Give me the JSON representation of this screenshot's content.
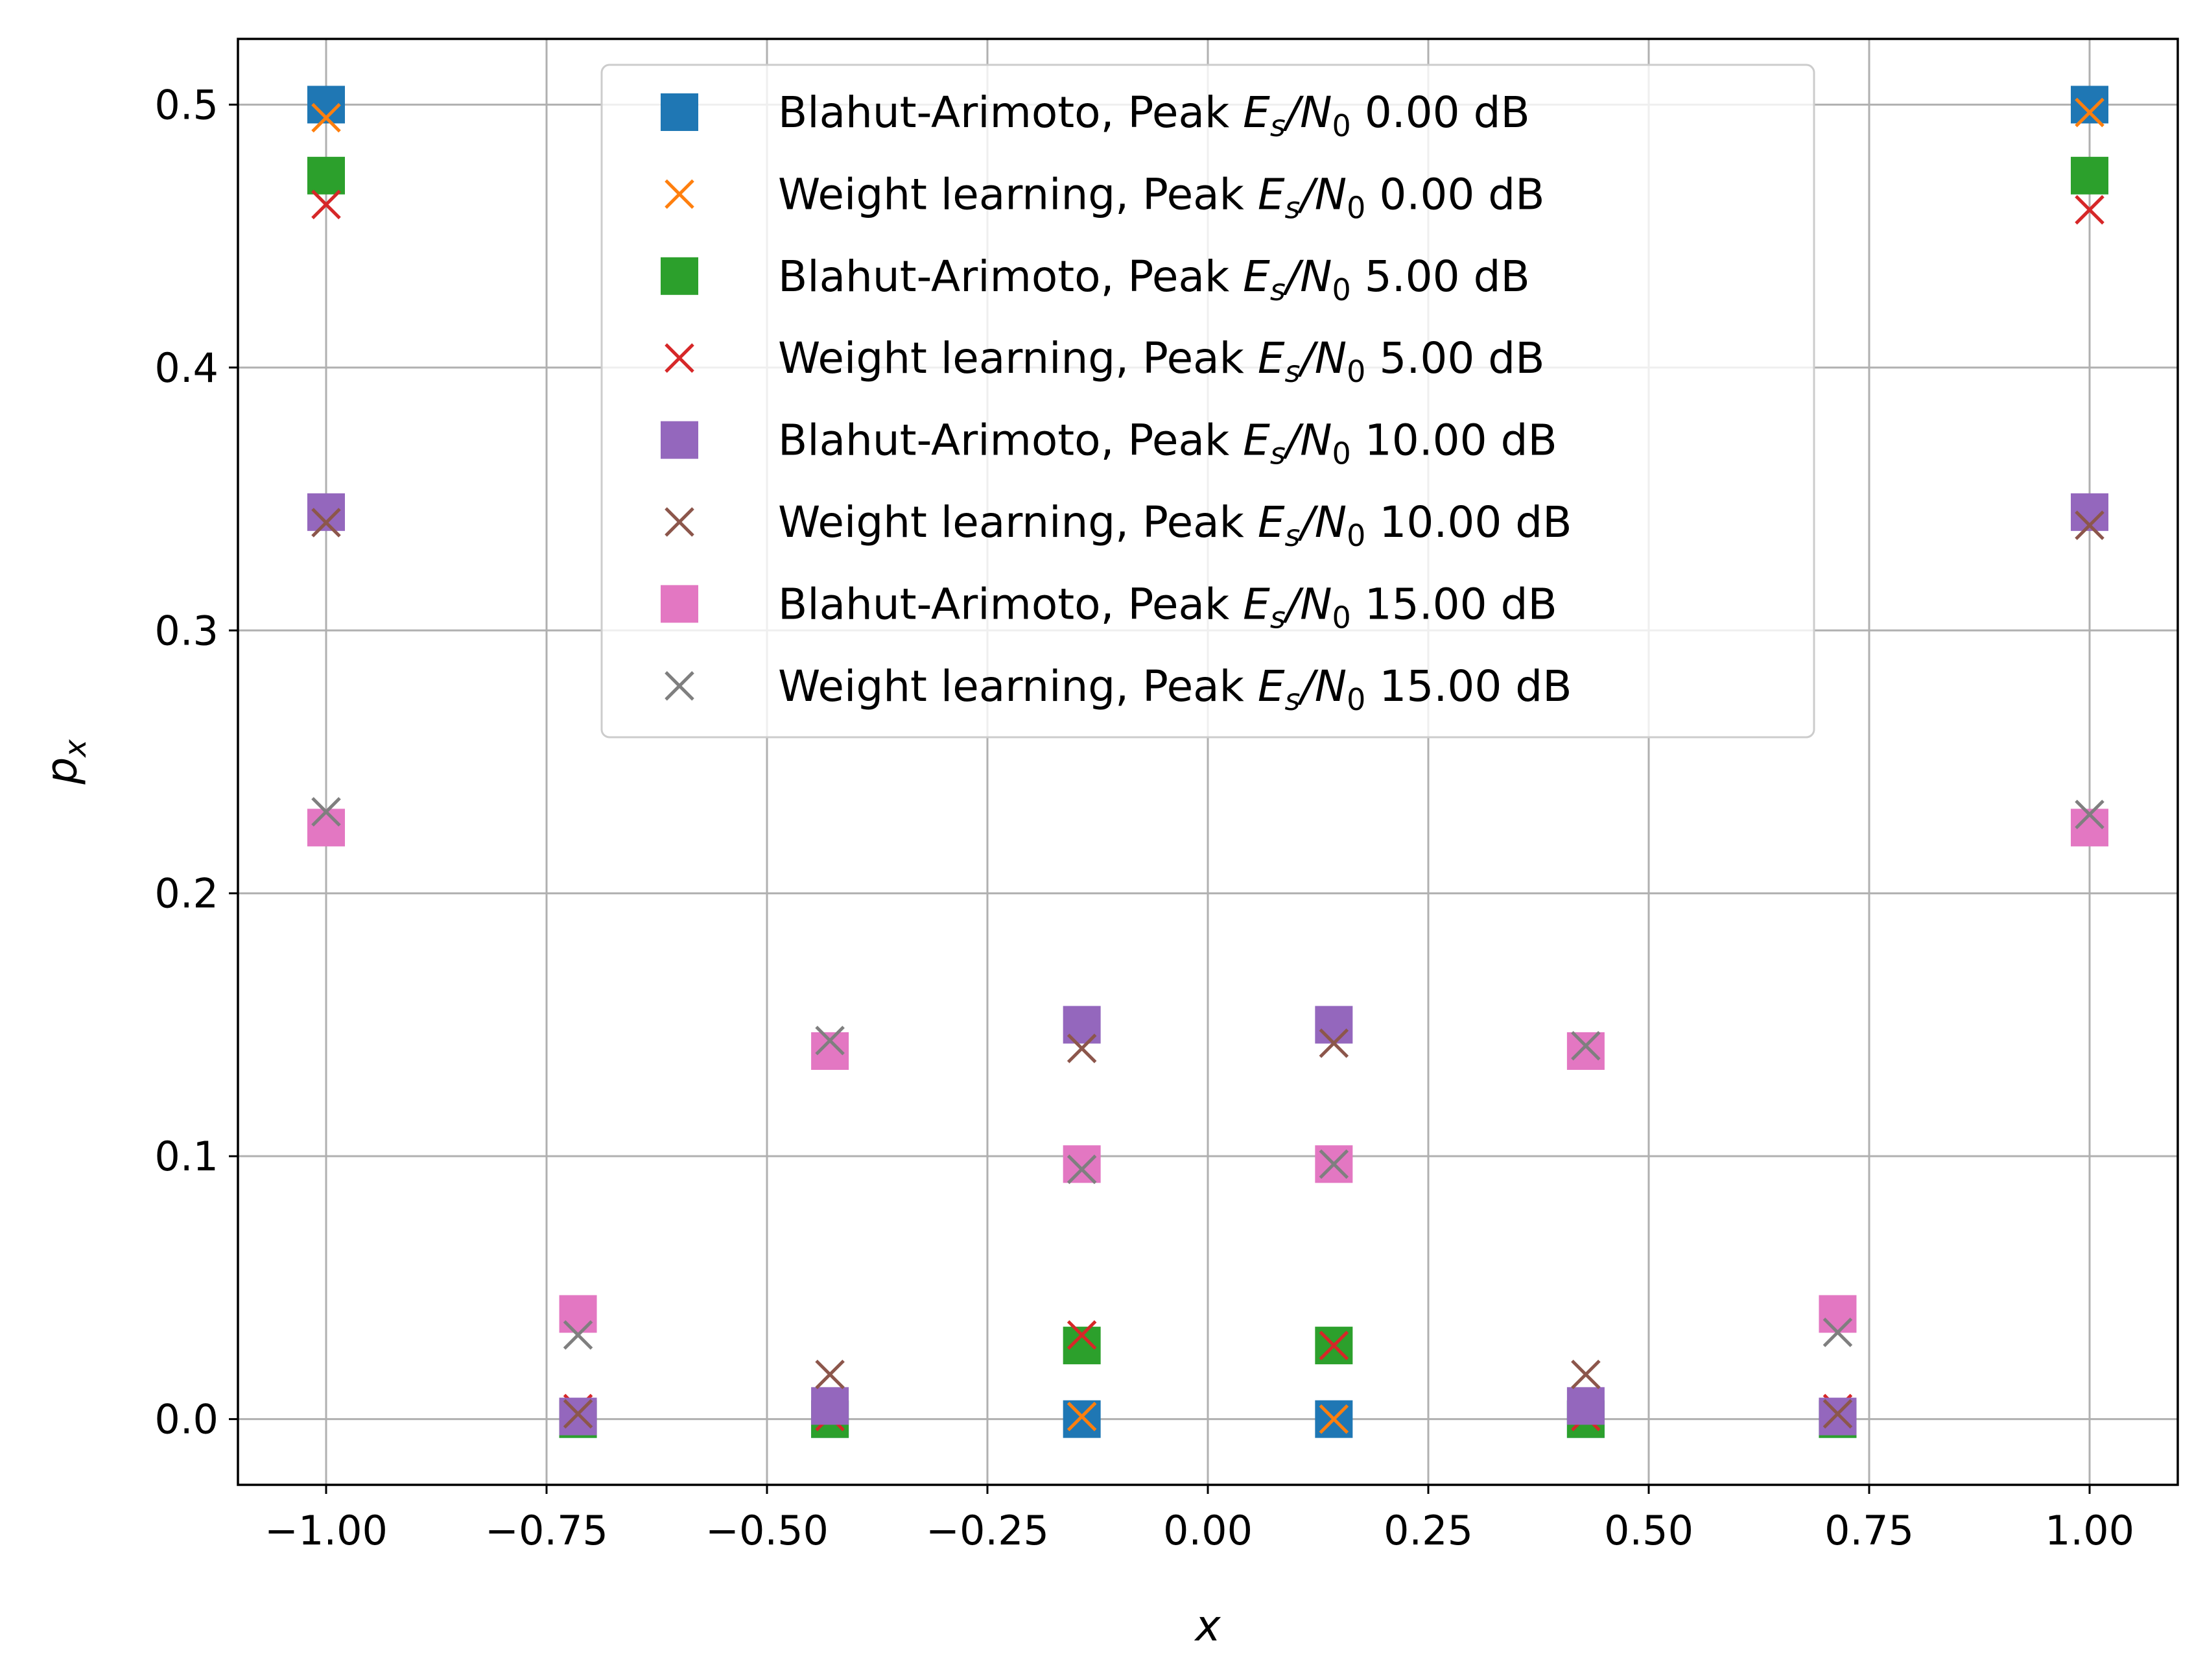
{
  "chart_data": {
    "type": "scatter",
    "title": "",
    "xlabel": "x",
    "ylabel": "p_x",
    "xlim": [
      -1.1,
      1.1
    ],
    "ylim": [
      -0.025,
      0.525
    ],
    "x": [
      -1.0,
      -0.7143,
      -0.4286,
      -0.1429,
      0.1429,
      0.4286,
      0.7143,
      1.0
    ],
    "x_ticks": [
      -1.0,
      -0.75,
      -0.5,
      -0.25,
      0.0,
      0.25,
      0.5,
      0.75,
      1.0
    ],
    "x_tick_labels": [
      "−1.00",
      "−0.75",
      "−0.50",
      "−0.25",
      "0.00",
      "0.25",
      "0.50",
      "0.75",
      "1.00"
    ],
    "y_ticks": [
      0.0,
      0.1,
      0.2,
      0.3,
      0.4,
      0.5
    ],
    "y_tick_labels": [
      "0.0",
      "0.1",
      "0.2",
      "0.3",
      "0.4",
      "0.5"
    ],
    "grid": true,
    "legend_position": "upper-center",
    "series": [
      {
        "name": "Blahut-Arimoto, Peak Es/N0 0.00 dB",
        "legend_prefix": "Blahut-Arimoto, Peak ",
        "legend_suffix": " 0.00 dB",
        "marker": "square",
        "color": "#1f77b4",
        "values": [
          0.5,
          0.0,
          0.0,
          0.0,
          0.0,
          0.0,
          0.0,
          0.5
        ]
      },
      {
        "name": "Weight learning, Peak Es/N0 0.00 dB",
        "legend_prefix": "Weight learning, Peak ",
        "legend_suffix": " 0.00 dB",
        "marker": "x",
        "color": "#ff7f0e",
        "values": [
          0.495,
          0.001,
          0.0,
          0.001,
          0.0,
          0.0,
          0.001,
          0.497
        ]
      },
      {
        "name": "Blahut-Arimoto, Peak Es/N0 5.00 dB",
        "legend_prefix": "Blahut-Arimoto, Peak ",
        "legend_suffix": " 5.00 dB",
        "marker": "square",
        "color": "#2ca02c",
        "values": [
          0.473,
          0.0,
          0.0,
          0.028,
          0.028,
          0.0,
          0.0,
          0.473
        ]
      },
      {
        "name": "Weight learning, Peak Es/N0 5.00 dB",
        "legend_prefix": "Weight learning, Peak ",
        "legend_suffix": " 5.00 dB",
        "marker": "x",
        "color": "#d62728",
        "values": [
          0.462,
          0.004,
          0.001,
          0.032,
          0.028,
          0.001,
          0.004,
          0.46
        ]
      },
      {
        "name": "Blahut-Arimoto, Peak Es/N0 10.00 dB",
        "legend_prefix": "Blahut-Arimoto, Peak ",
        "legend_suffix": " 10.00 dB",
        "marker": "square",
        "color": "#9467bd",
        "values": [
          0.345,
          0.001,
          0.005,
          0.15,
          0.15,
          0.005,
          0.001,
          0.345
        ]
      },
      {
        "name": "Weight learning, Peak Es/N0 10.00 dB",
        "legend_prefix": "Weight learning, Peak ",
        "legend_suffix": " 10.00 dB",
        "marker": "x",
        "color": "#8c564b",
        "values": [
          0.341,
          0.002,
          0.017,
          0.141,
          0.143,
          0.017,
          0.002,
          0.34
        ]
      },
      {
        "name": "Blahut-Arimoto, Peak Es/N0 15.00 dB",
        "legend_prefix": "Blahut-Arimoto, Peak ",
        "legend_suffix": " 15.00 dB",
        "marker": "square",
        "color": "#e377c2",
        "values": [
          0.225,
          0.04,
          0.14,
          0.097,
          0.097,
          0.14,
          0.04,
          0.225
        ]
      },
      {
        "name": "Weight learning, Peak Es/N0 15.00 dB",
        "legend_prefix": "Weight learning, Peak ",
        "legend_suffix": " 15.00 dB",
        "marker": "x",
        "color": "#7f7f7f",
        "values": [
          0.231,
          0.032,
          0.144,
          0.095,
          0.097,
          0.142,
          0.033,
          0.23
        ]
      }
    ]
  }
}
